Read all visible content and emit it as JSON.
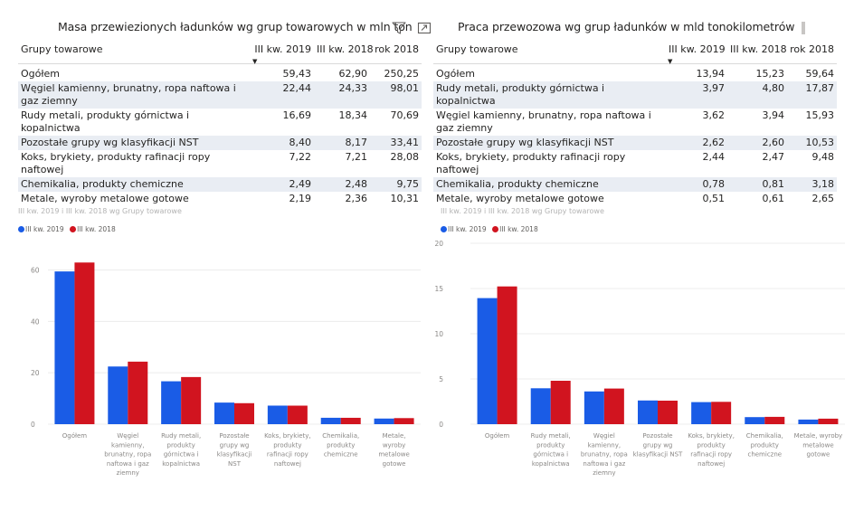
{
  "colors": {
    "series1": "#1a5ce6",
    "series2": "#d1141f",
    "alt_row": "#e9edf3"
  },
  "left": {
    "title": "Masa przewiezionych ładunków wg grup towarowych w mln ton",
    "icons": [
      "filter-icon",
      "focus-mode-icon"
    ],
    "table": {
      "headers": [
        "Grupy towarowe",
        "III kw. 2019",
        "III kw. 2018",
        "rok 2018"
      ],
      "rows": [
        [
          "Ogółem",
          "59,43",
          "62,90",
          "250,25"
        ],
        [
          "Węgiel kamienny, brunatny, ropa naftowa i gaz ziemny",
          "22,44",
          "24,33",
          "98,01"
        ],
        [
          "Rudy metali, produkty górnictwa i kopalnictwa",
          "16,69",
          "18,34",
          "70,69"
        ],
        [
          "Pozostałe grupy wg klasyfikacji NST",
          "8,40",
          "8,17",
          "33,41"
        ],
        [
          "Koks, brykiety, produkty rafinacji ropy naftowej",
          "7,22",
          "7,21",
          "28,08"
        ],
        [
          "Chemikalia, produkty chemiczne",
          "2,49",
          "2,48",
          "9,75"
        ],
        [
          "Metale, wyroby metalowe gotowe",
          "2,19",
          "2,36",
          "10,31"
        ]
      ]
    },
    "chart_title": "III kw. 2019 i III kw. 2018 wg Grupy towarowe",
    "legend": [
      "III kw. 2019",
      "III kw. 2018"
    ]
  },
  "right": {
    "title": "Praca przewozowa wg grup ładunków w mld tonokilometrów",
    "icons": [
      "more-options-icon"
    ],
    "table": {
      "headers": [
        "Grupy towarowe",
        "III kw. 2019",
        "III kw. 2018",
        "rok 2018"
      ],
      "rows": [
        [
          "Ogółem",
          "13,94",
          "15,23",
          "59,64"
        ],
        [
          "Rudy metali, produkty górnictwa i kopalnictwa",
          "3,97",
          "4,80",
          "17,87"
        ],
        [
          "Węgiel kamienny, brunatny, ropa naftowa i gaz ziemny",
          "3,62",
          "3,94",
          "15,93"
        ],
        [
          "Pozostałe grupy wg klasyfikacji NST",
          "2,62",
          "2,60",
          "10,53"
        ],
        [
          "Koks, brykiety, produkty rafinacji ropy naftowej",
          "2,44",
          "2,47",
          "9,48"
        ],
        [
          "Chemikalia, produkty chemiczne",
          "0,78",
          "0,81",
          "3,18"
        ],
        [
          "Metale, wyroby metalowe gotowe",
          "0,51",
          "0,61",
          "2,65"
        ]
      ]
    },
    "chart_title": "III kw. 2019 i III kw. 2018 wg Grupy towarowe",
    "legend": [
      "III kw. 2019",
      "III kw. 2018"
    ]
  },
  "chart_data": [
    {
      "type": "bar",
      "title": "III kw. 2019 i III kw. 2018 wg Grupy towarowe",
      "categories": [
        [
          "Ogółem"
        ],
        [
          "Węgiel",
          "kamienny,",
          "brunatny, ropa",
          "naftowa i gaz",
          "ziemny"
        ],
        [
          "Rudy metali,",
          "produkty",
          "górnictwa i",
          "kopalnictwa"
        ],
        [
          "Pozostałe",
          "grupy wg",
          "klasyfikacji",
          "NST"
        ],
        [
          "Koks, brykiety,",
          "produkty",
          "rafinacji ropy",
          "naftowej"
        ],
        [
          "Chemikalia,",
          "produkty",
          "chemiczne"
        ],
        [
          "Metale,",
          "wyroby",
          "metalowe",
          "gotowe"
        ]
      ],
      "series": [
        {
          "name": "III kw. 2019",
          "values": [
            59.43,
            22.44,
            16.69,
            8.4,
            7.22,
            2.49,
            2.19
          ]
        },
        {
          "name": "III kw. 2018",
          "values": [
            62.9,
            24.33,
            18.34,
            8.17,
            7.21,
            2.48,
            2.36
          ]
        }
      ],
      "ylim": [
        0,
        60
      ],
      "yticks": [
        0,
        20,
        40,
        60
      ],
      "legend": "top-left",
      "grid": true
    },
    {
      "type": "bar",
      "title": "III kw. 2019 i III kw. 2018 wg Grupy towarowe",
      "categories": [
        [
          "Ogółem"
        ],
        [
          "Rudy metali,",
          "produkty",
          "górnictwa i",
          "kopalnictwa"
        ],
        [
          "Węgiel",
          "kamienny,",
          "brunatny, ropa",
          "naftowa i gaz",
          "ziemny"
        ],
        [
          "Pozostałe",
          "grupy wg",
          "klasyfikacji NST"
        ],
        [
          "Koks, brykiety,",
          "produkty",
          "rafinacji ropy",
          "naftowej"
        ],
        [
          "Chemikalia,",
          "produkty",
          "chemiczne"
        ],
        [
          "Metale, wyroby",
          "metalowe",
          "gotowe"
        ]
      ],
      "series": [
        {
          "name": "III kw. 2019",
          "values": [
            13.94,
            3.97,
            3.62,
            2.62,
            2.44,
            0.78,
            0.51
          ]
        },
        {
          "name": "III kw. 2018",
          "values": [
            15.23,
            4.8,
            3.94,
            2.6,
            2.47,
            0.81,
            0.61
          ]
        }
      ],
      "ylim": [
        0,
        20
      ],
      "yticks": [
        0,
        5,
        10,
        15,
        20
      ],
      "legend": "top-left",
      "grid": true
    }
  ]
}
